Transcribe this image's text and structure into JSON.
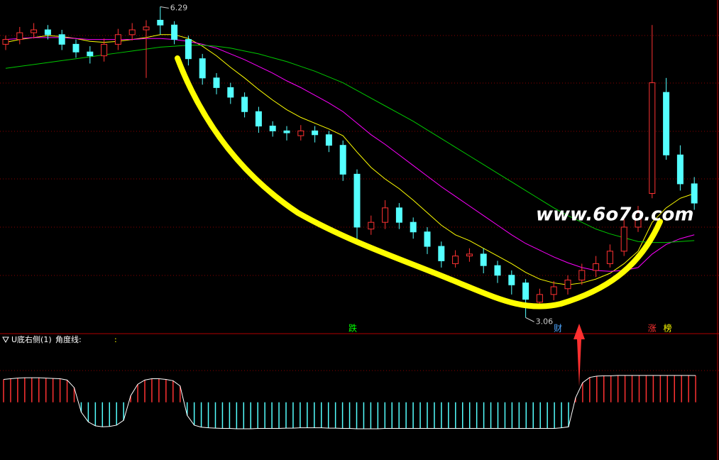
{
  "chart_data": [
    {
      "type": "candlestick",
      "ylim": [
        2.93,
        6.36
      ],
      "up_color": "#ff3232",
      "down_color": "#54ffff",
      "open": [
        5.9,
        5.95,
        6.02,
        6.05,
        6.0,
        5.9,
        5.82,
        5.78,
        5.9,
        6.0,
        6.05,
        6.15,
        6.1,
        5.95,
        5.75,
        5.55,
        5.45,
        5.35,
        5.2,
        5.05,
        5.0,
        4.95,
        5.0,
        4.96,
        4.85,
        4.55,
        3.98,
        4.05,
        4.2,
        4.05,
        3.95,
        3.8,
        3.62,
        3.7,
        3.72,
        3.6,
        3.5,
        3.42,
        3.22,
        3.3,
        3.36,
        3.45,
        3.55,
        3.62,
        3.75,
        4.0,
        4.35,
        5.4,
        4.75,
        4.45
      ],
      "high": [
        5.99,
        6.08,
        6.12,
        6.1,
        6.05,
        5.95,
        5.88,
        5.96,
        6.06,
        6.12,
        6.15,
        6.29,
        6.14,
        5.99,
        5.8,
        5.6,
        5.5,
        5.4,
        5.25,
        5.1,
        5.05,
        5.06,
        5.05,
        5.0,
        4.9,
        4.6,
        4.12,
        4.28,
        4.25,
        4.1,
        4.0,
        3.85,
        3.76,
        3.78,
        3.78,
        3.65,
        3.55,
        3.46,
        3.36,
        3.44,
        3.5,
        3.62,
        3.7,
        3.82,
        4.08,
        4.22,
        6.1,
        5.55,
        4.85,
        4.52
      ],
      "low": [
        5.84,
        5.9,
        5.96,
        5.95,
        5.84,
        5.76,
        5.7,
        5.72,
        5.84,
        5.94,
        5.55,
        6.0,
        5.9,
        5.68,
        5.48,
        5.38,
        5.28,
        5.14,
        4.98,
        4.94,
        4.9,
        4.9,
        4.88,
        4.78,
        4.48,
        3.85,
        3.92,
        3.98,
        3.98,
        3.88,
        3.72,
        3.58,
        3.58,
        3.64,
        3.52,
        3.42,
        3.3,
        3.06,
        3.18,
        3.24,
        3.3,
        3.4,
        3.48,
        3.58,
        3.7,
        3.95,
        4.3,
        4.7,
        4.38,
        4.18
      ],
      "close": [
        5.95,
        6.02,
        6.05,
        6.0,
        5.9,
        5.82,
        5.78,
        5.9,
        6.0,
        6.05,
        6.08,
        6.1,
        5.95,
        5.75,
        5.55,
        5.45,
        5.35,
        5.2,
        5.05,
        5.0,
        4.98,
        5.0,
        4.96,
        4.85,
        4.55,
        4.0,
        4.05,
        4.2,
        4.05,
        3.95,
        3.8,
        3.65,
        3.7,
        3.72,
        3.6,
        3.5,
        3.4,
        3.25,
        3.3,
        3.38,
        3.45,
        3.55,
        3.62,
        3.75,
        4.0,
        4.15,
        5.5,
        4.75,
        4.45,
        4.25
      ],
      "ma": [
        {
          "color": "#ffff00",
          "values": [
            5.92,
            5.95,
            5.97,
            5.99,
            5.98,
            5.96,
            5.93,
            5.92,
            5.93,
            5.95,
            5.97,
            6.0,
            6.0,
            5.96,
            5.88,
            5.78,
            5.66,
            5.55,
            5.43,
            5.32,
            5.22,
            5.14,
            5.08,
            5.02,
            4.95,
            4.78,
            4.62,
            4.5,
            4.4,
            4.28,
            4.15,
            4.02,
            3.92,
            3.86,
            3.78,
            3.7,
            3.62,
            3.53,
            3.46,
            3.42,
            3.4,
            3.42,
            3.46,
            3.52,
            3.62,
            3.75,
            4.05,
            4.2,
            4.3,
            4.35
          ]
        },
        {
          "color": "#ff00ff",
          "values": [
            5.95,
            5.96,
            5.97,
            5.97,
            5.97,
            5.96,
            5.95,
            5.95,
            5.95,
            5.95,
            5.96,
            5.96,
            5.95,
            5.93,
            5.9,
            5.86,
            5.8,
            5.74,
            5.67,
            5.6,
            5.52,
            5.45,
            5.37,
            5.29,
            5.2,
            5.08,
            4.96,
            4.86,
            4.75,
            4.64,
            4.53,
            4.42,
            4.32,
            4.22,
            4.12,
            4.02,
            3.92,
            3.83,
            3.76,
            3.69,
            3.63,
            3.58,
            3.55,
            3.54,
            3.55,
            3.58,
            3.72,
            3.82,
            3.88,
            3.92
          ]
        },
        {
          "color": "#00c800",
          "values": [
            5.65,
            5.67,
            5.69,
            5.71,
            5.73,
            5.75,
            5.77,
            5.79,
            5.81,
            5.83,
            5.85,
            5.87,
            5.88,
            5.89,
            5.89,
            5.88,
            5.86,
            5.83,
            5.8,
            5.76,
            5.72,
            5.67,
            5.62,
            5.56,
            5.5,
            5.42,
            5.34,
            5.26,
            5.18,
            5.1,
            5.01,
            4.92,
            4.83,
            4.74,
            4.65,
            4.56,
            4.47,
            4.38,
            4.29,
            4.2,
            4.12,
            4.05,
            3.98,
            3.93,
            3.89,
            3.85,
            3.84,
            3.84,
            3.85,
            3.86
          ]
        }
      ],
      "high_mark": 11,
      "low_mark": 37,
      "markers": [
        {
          "at": 24.7,
          "label": "跌",
          "color": "#00ff00"
        },
        {
          "at": 39.3,
          "label": "财",
          "color": "#4da6ff"
        },
        {
          "at": 46.0,
          "label": "涨",
          "color": "#ff3232"
        },
        {
          "at": 47.1,
          "label": "榜",
          "color": "#ffff00"
        }
      ],
      "watermark": "www.6o7o.com"
    },
    {
      "type": "bar",
      "title": "U底右侧(1)",
      "line_label": "角度线:",
      "value_prefix": ":",
      "ylim": [
        -170,
        173
      ],
      "pos_color": "#ff3232",
      "neg_color": "#54ffff",
      "values": [
        70,
        72,
        74,
        75,
        75,
        75,
        74,
        73,
        72,
        68,
        45,
        -30,
        -60,
        -72,
        -75,
        -74,
        -70,
        -55,
        20,
        55,
        68,
        72,
        72,
        70,
        66,
        50,
        -40,
        -70,
        -76,
        -78,
        -79,
        -80,
        -80,
        -81,
        -81,
        -81,
        -80,
        -80,
        -80,
        -80,
        -79,
        -79,
        -78,
        -78,
        -78,
        -78,
        -79,
        -79,
        -80,
        -80,
        -81,
        -81,
        -81,
        -81,
        -80,
        -80,
        -80,
        -80,
        -80,
        -80,
        -80,
        -80,
        -80,
        -80,
        -80,
        -80,
        -80,
        -80,
        -80,
        -80,
        -80,
        -80,
        -80,
        -80,
        -80,
        -80,
        -80,
        -80,
        -80,
        -78,
        -75,
        14,
        60,
        76,
        80,
        81,
        81,
        82,
        82,
        82,
        82,
        82,
        82,
        82,
        82,
        82,
        82,
        82,
        81.83
      ]
    }
  ]
}
